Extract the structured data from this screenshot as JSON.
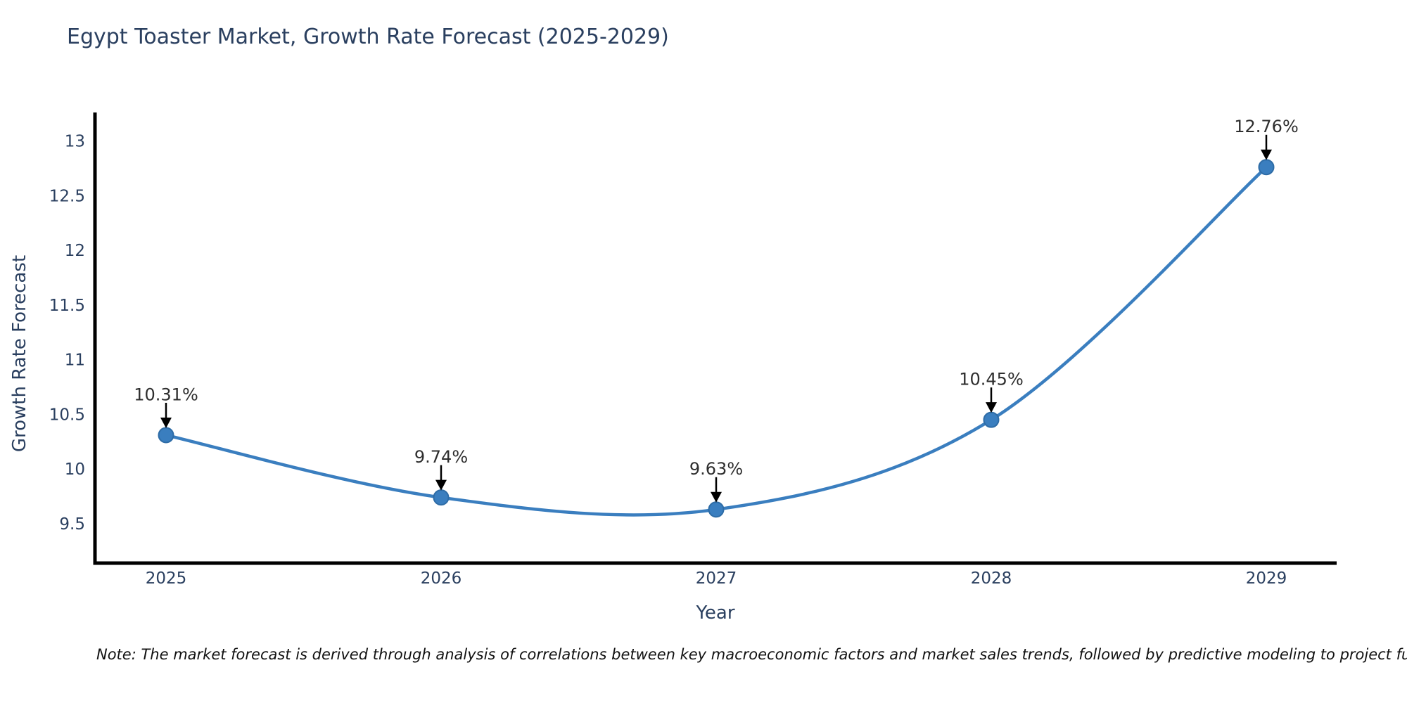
{
  "page": {
    "background_color": "#ffffff"
  },
  "header": {
    "title": "Egypt Toaster Market, Growth Rate Forecast (2025-2029)"
  },
  "chart_data": {
    "type": "line",
    "title": "Egypt Toaster Market, Growth Rate Forecast (2025-2029)",
    "categories": [
      "2025",
      "2026",
      "2027",
      "2028",
      "2029"
    ],
    "x": [
      2025,
      2026,
      2027,
      2028,
      2029
    ],
    "values": [
      10.31,
      9.74,
      9.63,
      10.45,
      12.76
    ],
    "point_labels": [
      "10.31%",
      "9.74%",
      "9.63%",
      "10.45%",
      "12.76%"
    ],
    "xlabel": "Year",
    "ylabel": "Growth Rate Forecast",
    "ylim": [
      9.14,
      13.26
    ],
    "y_ticks": [
      9.5,
      10,
      10.5,
      11,
      11.5,
      12,
      12.5,
      13
    ],
    "grid": false,
    "legend": "none",
    "smoothing": "spline",
    "annotation_style": "arrow-down-to-point",
    "colors": {
      "line": "#3a7ebf",
      "marker_fill": "#3a7ebf",
      "marker_edge": "#2e6ca6",
      "axis": "#000000",
      "tick_labels": "#2a3f5f",
      "annotation_text": "#2e2e2e",
      "annotation_arrow": "#000000"
    }
  },
  "footer": {
    "note": "Note: The market forecast is derived through analysis of correlations between key macroeconomic factors and market sales trends, followed by predictive modeling to project future sal"
  }
}
